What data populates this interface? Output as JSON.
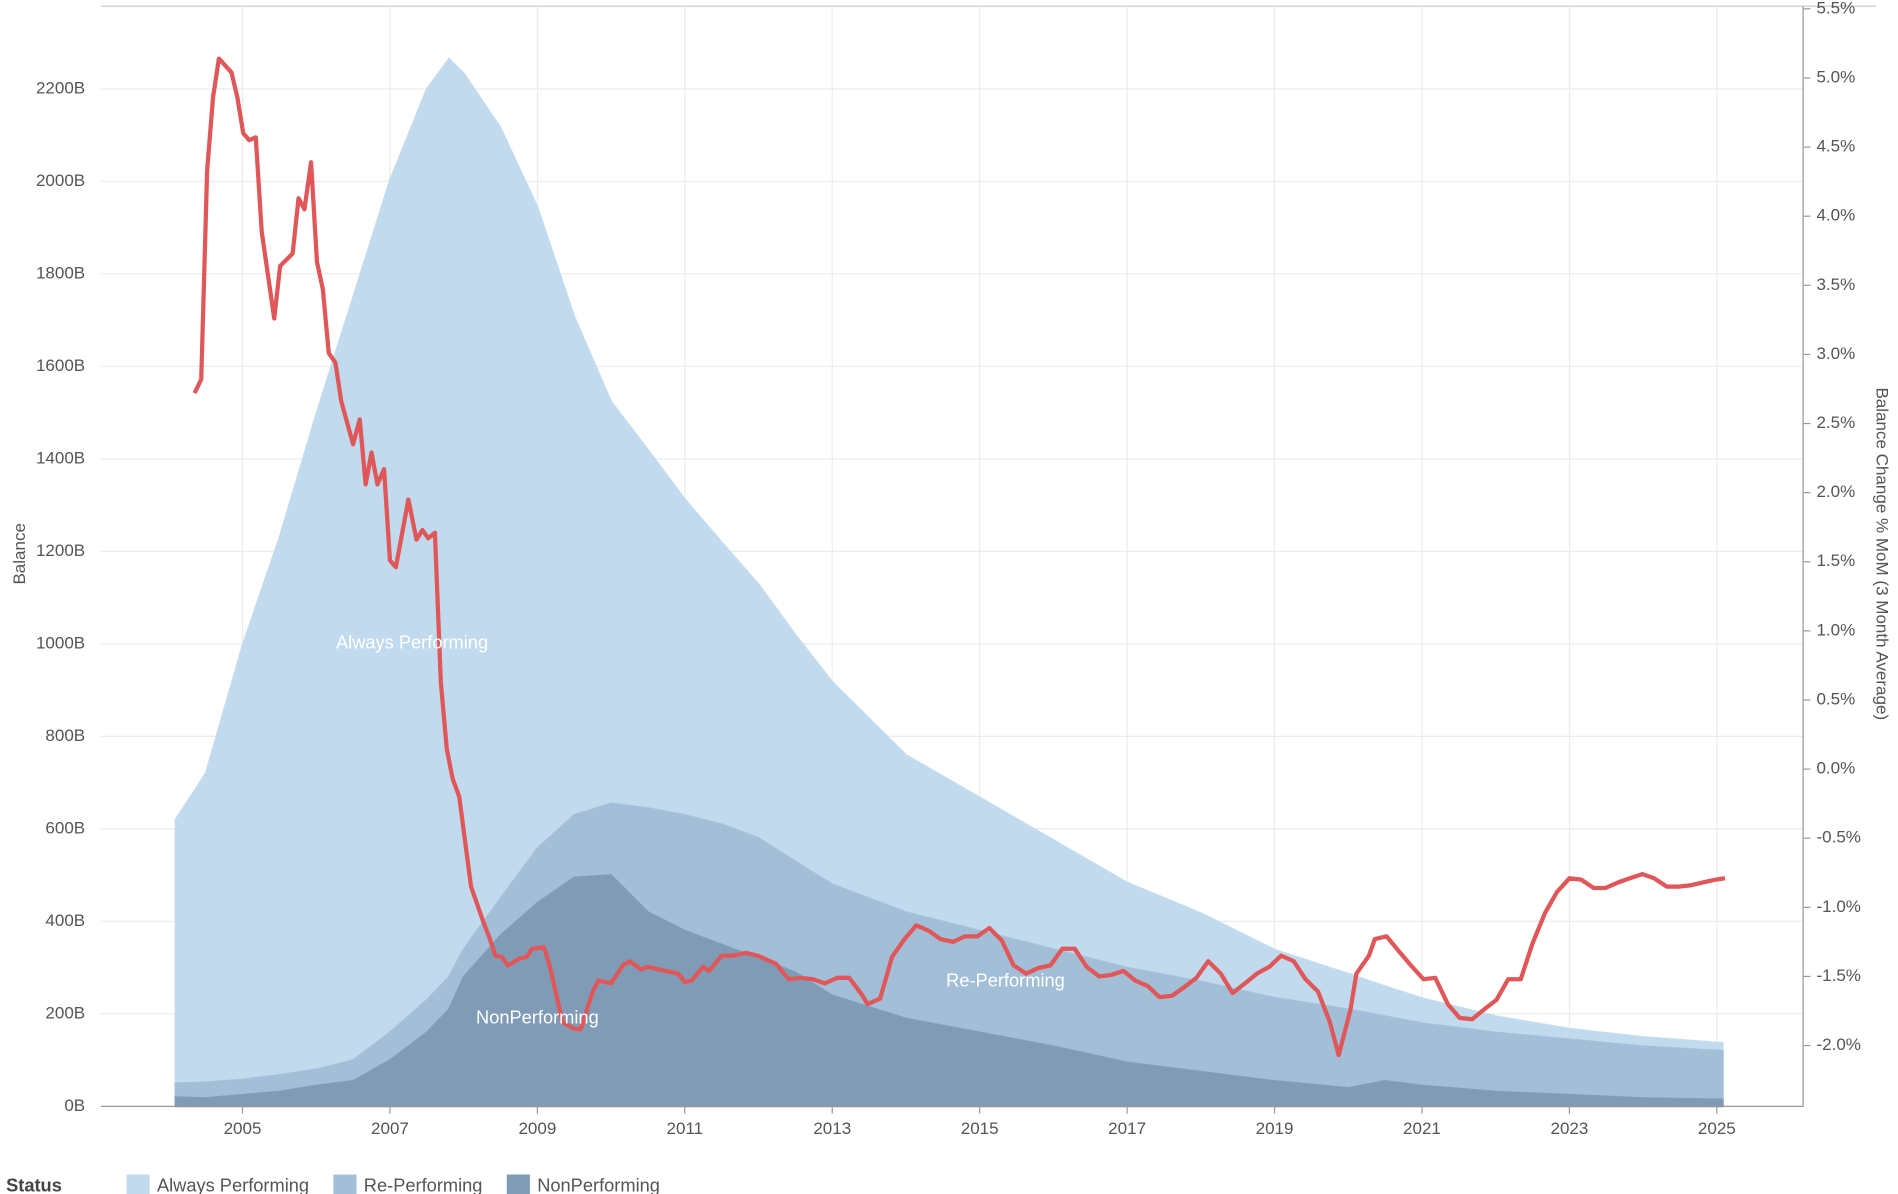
{
  "chart_data": {
    "type": "area",
    "ylabel": "Balance",
    "y2label": "Balance Change % MoM (3 Month Average)",
    "legend_title": "Status",
    "legend": "bottom-left",
    "grid": true,
    "xlim": [
      2003.08,
      2026.17
    ],
    "xticks": [
      2005,
      2007,
      2009,
      2011,
      2013,
      2015,
      2017,
      2019,
      2021,
      2023,
      2025
    ],
    "ylim": [
      0,
      2379
    ],
    "yticks": [
      {
        "value": 0,
        "label": "0B"
      },
      {
        "value": 200,
        "label": "200B"
      },
      {
        "value": 400,
        "label": "400B"
      },
      {
        "value": 600,
        "label": "600B"
      },
      {
        "value": 800,
        "label": "800B"
      },
      {
        "value": 1000,
        "label": "1000B"
      },
      {
        "value": 1200,
        "label": "1200B"
      },
      {
        "value": 1400,
        "label": "1400B"
      },
      {
        "value": 1600,
        "label": "1600B"
      },
      {
        "value": 1800,
        "label": "1800B"
      },
      {
        "value": 2000,
        "label": "2000B"
      },
      {
        "value": 2200,
        "label": "2200B"
      }
    ],
    "y2lim": [
      -2.44,
      5.52
    ],
    "y2ticks": [
      {
        "value": -2,
        "label": "-2.0%"
      },
      {
        "value": -1.5,
        "label": "-1.5%"
      },
      {
        "value": -1,
        "label": "-1.0%"
      },
      {
        "value": -0.5,
        "label": "-0.5%"
      },
      {
        "value": 0,
        "label": "0.0%"
      },
      {
        "value": 0.5,
        "label": "0.5%"
      },
      {
        "value": 1,
        "label": "1.0%"
      },
      {
        "value": 1.5,
        "label": "1.5%"
      },
      {
        "value": 2,
        "label": "2.0%"
      },
      {
        "value": 2.5,
        "label": "2.5%"
      },
      {
        "value": 3,
        "label": "3.0%"
      },
      {
        "value": 3.5,
        "label": "3.5%"
      },
      {
        "value": 4,
        "label": "4.0%"
      },
      {
        "value": 4.5,
        "label": "4.5%"
      },
      {
        "value": 5,
        "label": "5.0%"
      },
      {
        "value": 5.5,
        "label": "5.5%"
      }
    ],
    "x": [
      2004.09,
      2004.5,
      2005,
      2005.5,
      2006,
      2006.5,
      2007,
      2007.5,
      2007.8,
      2008,
      2008.5,
      2009,
      2009.5,
      2010,
      2010.5,
      2011,
      2011.5,
      2012,
      2012.5,
      2013,
      2014,
      2015,
      2016,
      2017,
      2018,
      2019,
      2020,
      2020.5,
      2021,
      2022,
      2023,
      2024,
      2025.08
    ],
    "series": [
      {
        "name": "Always Performing",
        "color": "#c1daed",
        "values": [
          620,
          720,
          997,
          1230,
          1497,
          1750,
          2003,
          2200,
          2265,
          2234,
          2116,
          1945,
          1708,
          1524,
          1420,
          1313,
          1220,
          1129,
          1020,
          918,
          760,
          668,
          576,
          484,
          418,
          339,
          287,
          260,
          234,
          195,
          168,
          150,
          137
        ]
      },
      {
        "name": "Re-Performing",
        "color": "#a3bfd8",
        "values": [
          50,
          52,
          58,
          68,
          80,
          100,
          160,
          230,
          280,
          340,
          450,
          558,
          630,
          655,
          645,
          630,
          610,
          580,
          530,
          480,
          420,
          380,
          340,
          300,
          270,
          235,
          210,
          195,
          180,
          160,
          145,
          130,
          120
        ]
      },
      {
        "name": "NonPerforming",
        "color": "#809bb6",
        "values": [
          20,
          18,
          25,
          32,
          45,
          55,
          100,
          160,
          210,
          280,
          370,
          440,
          495,
          500,
          420,
          380,
          350,
          320,
          290,
          240,
          190,
          160,
          130,
          95,
          75,
          55,
          40,
          55,
          45,
          32,
          25,
          18,
          15
        ]
      },
      {
        "name": "Balance Change % MoM (3 Month Average)",
        "type": "line",
        "axis": "y2",
        "color": "#e05759",
        "x": [
          2004.35,
          2004.44,
          2004.52,
          2004.6,
          2004.68,
          2004.85,
          2004.93,
          2005.01,
          2005.09,
          2005.18,
          2005.26,
          2005.43,
          2005.51,
          2005.68,
          2005.76,
          2005.84,
          2005.93,
          2006.01,
          2006.09,
          2006.17,
          2006.26,
          2006.34,
          2006.5,
          2006.59,
          2006.67,
          2006.75,
          2006.83,
          2006.92,
          2007.0,
          2007.08,
          2007.25,
          2007.36,
          2007.44,
          2007.52,
          2007.61,
          2007.69,
          2007.77,
          2007.85,
          2007.94,
          2008.1,
          2008.27,
          2008.35,
          2008.43,
          2008.52,
          2008.6,
          2008.76,
          2008.85,
          2008.93,
          2009.09,
          2009.17,
          2009.34,
          2009.5,
          2009.59,
          2009.75,
          2009.83,
          2010.0,
          2010.16,
          2010.25,
          2010.41,
          2010.49,
          2010.74,
          2010.91,
          2011.0,
          2011.09,
          2011.25,
          2011.33,
          2011.5,
          2011.66,
          2011.83,
          2011.99,
          2012.24,
          2012.41,
          2012.57,
          2012.74,
          2012.9,
          2013.07,
          2013.23,
          2013.4,
          2013.48,
          2013.65,
          2013.81,
          2013.98,
          2014.14,
          2014.31,
          2014.47,
          2014.64,
          2014.8,
          2014.97,
          2015.13,
          2015.3,
          2015.46,
          2015.63,
          2015.79,
          2015.96,
          2016.12,
          2016.29,
          2016.45,
          2016.62,
          2016.78,
          2016.95,
          2017.11,
          2017.28,
          2017.44,
          2017.61,
          2017.77,
          2017.94,
          2018.1,
          2018.27,
          2018.43,
          2018.6,
          2018.76,
          2018.93,
          2019.09,
          2019.26,
          2019.42,
          2019.59,
          2019.75,
          2019.87,
          2020.03,
          2020.11,
          2020.28,
          2020.36,
          2020.52,
          2020.69,
          2020.85,
          2021.02,
          2021.18,
          2021.35,
          2021.51,
          2021.68,
          2021.84,
          2022.01,
          2022.17,
          2022.34,
          2022.5,
          2022.67,
          2022.83,
          2023.0,
          2023.16,
          2023.33,
          2023.49,
          2023.66,
          2023.82,
          2023.99,
          2024.15,
          2024.32,
          2024.48,
          2024.65,
          2024.81,
          2024.98,
          2025.11
        ],
        "values": [
          2.72,
          2.82,
          4.33,
          4.86,
          5.14,
          5.04,
          4.86,
          4.6,
          4.55,
          4.57,
          3.89,
          3.26,
          3.64,
          3.73,
          4.13,
          4.05,
          4.39,
          3.67,
          3.47,
          3.01,
          2.94,
          2.66,
          2.35,
          2.53,
          2.06,
          2.29,
          2.06,
          2.17,
          1.51,
          1.46,
          1.95,
          1.66,
          1.73,
          1.67,
          1.71,
          0.63,
          0.15,
          -0.07,
          -0.2,
          -0.85,
          -1.11,
          -1.22,
          -1.35,
          -1.36,
          -1.42,
          -1.37,
          -1.36,
          -1.3,
          -1.29,
          -1.43,
          -1.83,
          -1.88,
          -1.88,
          -1.61,
          -1.53,
          -1.55,
          -1.42,
          -1.39,
          -1.45,
          -1.43,
          -1.46,
          -1.48,
          -1.54,
          -1.53,
          -1.43,
          -1.46,
          -1.35,
          -1.35,
          -1.33,
          -1.35,
          -1.41,
          -1.52,
          -1.51,
          -1.52,
          -1.55,
          -1.51,
          -1.51,
          -1.63,
          -1.7,
          -1.66,
          -1.36,
          -1.23,
          -1.13,
          -1.17,
          -1.23,
          -1.25,
          -1.21,
          -1.21,
          -1.15,
          -1.24,
          -1.42,
          -1.48,
          -1.44,
          -1.42,
          -1.3,
          -1.3,
          -1.43,
          -1.5,
          -1.49,
          -1.46,
          -1.53,
          -1.57,
          -1.65,
          -1.64,
          -1.58,
          -1.51,
          -1.39,
          -1.48,
          -1.62,
          -1.55,
          -1.48,
          -1.43,
          -1.35,
          -1.39,
          -1.52,
          -1.61,
          -1.83,
          -2.07,
          -1.74,
          -1.48,
          -1.35,
          -1.23,
          -1.21,
          -1.32,
          -1.42,
          -1.52,
          -1.51,
          -1.7,
          -1.8,
          -1.81,
          -1.74,
          -1.67,
          -1.52,
          -1.52,
          -1.26,
          -1.04,
          -0.89,
          -0.79,
          -0.8,
          -0.86,
          -0.86,
          -0.82,
          -0.79,
          -0.76,
          -0.79,
          -0.85,
          -0.85,
          -0.84,
          -0.82,
          -0.8,
          -0.79
        ]
      }
    ],
    "annotations": [
      {
        "text": "Always Performing",
        "x": 2007.3,
        "y": 1000
      },
      {
        "text": "NonPerforming",
        "x": 2009.0,
        "y": 190
      },
      {
        "text": "Re-Performing",
        "x": 2015.35,
        "y": 270
      }
    ]
  }
}
